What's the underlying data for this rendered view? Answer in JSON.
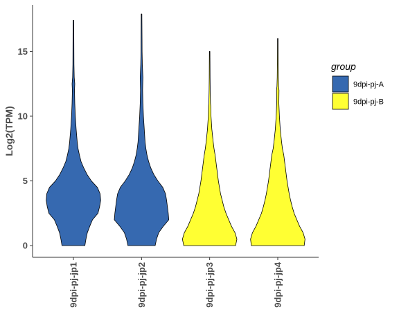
{
  "chart_data": {
    "type": "violin",
    "title": "",
    "xlabel": "",
    "ylabel": "Log2(TPM)",
    "ylim": [
      -0.9,
      18.6
    ],
    "yticks": [
      0,
      5,
      10,
      15
    ],
    "grid": false,
    "legend": {
      "title": "group",
      "position": "right",
      "entries": [
        {
          "name": "9dpi-pj-A",
          "color": "#3669b0"
        },
        {
          "name": "9dpi-pj-B",
          "color": "#ffff33"
        }
      ]
    },
    "categories": [
      "9dpi-pj-jp1",
      "9dpi-pj-jp2",
      "9dpi-pj-jp3",
      "9dpi-pj-jp4"
    ],
    "violins": [
      {
        "category": "9dpi-pj-jp1",
        "group": "9dpi-pj-A",
        "profile": [
          [
            0,
            0.42
          ],
          [
            0.5,
            0.46
          ],
          [
            1,
            0.51
          ],
          [
            1.5,
            0.6
          ],
          [
            2,
            0.7
          ],
          [
            2.5,
            0.9
          ],
          [
            3,
            0.96
          ],
          [
            3.5,
            1.0
          ],
          [
            4,
            0.98
          ],
          [
            4.5,
            0.88
          ],
          [
            5,
            0.66
          ],
          [
            5.5,
            0.5
          ],
          [
            6,
            0.38
          ],
          [
            6.5,
            0.28
          ],
          [
            7,
            0.22
          ],
          [
            7.5,
            0.17
          ],
          [
            8,
            0.14
          ],
          [
            9,
            0.1
          ],
          [
            10,
            0.07
          ],
          [
            11,
            0.05
          ],
          [
            12,
            0.04
          ],
          [
            12.5,
            0.05
          ],
          [
            13,
            0.03
          ],
          [
            14,
            0.02
          ],
          [
            15,
            0.018
          ],
          [
            16,
            0.016
          ],
          [
            17,
            0.015
          ],
          [
            17.4,
            0.012
          ]
        ]
      },
      {
        "category": "9dpi-pj-jp2",
        "group": "9dpi-pj-A",
        "profile": [
          [
            0,
            0.5
          ],
          [
            0.5,
            0.55
          ],
          [
            1,
            0.63
          ],
          [
            1.5,
            0.8
          ],
          [
            2,
            1.0
          ],
          [
            2.5,
            0.98
          ],
          [
            3,
            0.95
          ],
          [
            3.5,
            0.92
          ],
          [
            4,
            0.88
          ],
          [
            4.5,
            0.78
          ],
          [
            5,
            0.6
          ],
          [
            5.5,
            0.45
          ],
          [
            6,
            0.34
          ],
          [
            6.5,
            0.26
          ],
          [
            7,
            0.2
          ],
          [
            7.5,
            0.16
          ],
          [
            8,
            0.13
          ],
          [
            9,
            0.1
          ],
          [
            10,
            0.07
          ],
          [
            11,
            0.05
          ],
          [
            12,
            0.04
          ],
          [
            13,
            0.05
          ],
          [
            14,
            0.03
          ],
          [
            15,
            0.02
          ],
          [
            16,
            0.018
          ],
          [
            17,
            0.015
          ],
          [
            17.9,
            0.012
          ]
        ]
      },
      {
        "category": "9dpi-pj-jp3",
        "group": "9dpi-pj-B",
        "profile": [
          [
            0,
            0.95
          ],
          [
            0.5,
            1.0
          ],
          [
            1,
            0.93
          ],
          [
            1.5,
            0.8
          ],
          [
            2,
            0.7
          ],
          [
            2.5,
            0.6
          ],
          [
            3,
            0.52
          ],
          [
            3.5,
            0.46
          ],
          [
            4,
            0.4
          ],
          [
            5,
            0.32
          ],
          [
            6,
            0.26
          ],
          [
            7,
            0.2
          ],
          [
            7.5,
            0.16
          ],
          [
            8,
            0.13
          ],
          [
            9,
            0.08
          ],
          [
            10,
            0.05
          ],
          [
            10.8,
            0.04
          ],
          [
            11,
            0.03
          ],
          [
            12,
            0.02
          ],
          [
            13,
            0.015
          ],
          [
            14,
            0.013
          ],
          [
            15,
            0.01
          ]
        ]
      },
      {
        "category": "9dpi-pj-jp4",
        "group": "9dpi-pj-B",
        "profile": [
          [
            0,
            0.97
          ],
          [
            0.5,
            1.0
          ],
          [
            1,
            0.93
          ],
          [
            1.5,
            0.8
          ],
          [
            2,
            0.7
          ],
          [
            2.5,
            0.6
          ],
          [
            3,
            0.53
          ],
          [
            3.5,
            0.47
          ],
          [
            4,
            0.42
          ],
          [
            5,
            0.34
          ],
          [
            6,
            0.28
          ],
          [
            7,
            0.22
          ],
          [
            7.5,
            0.17
          ],
          [
            8,
            0.14
          ],
          [
            9,
            0.09
          ],
          [
            10,
            0.06
          ],
          [
            11,
            0.04
          ],
          [
            12,
            0.045
          ],
          [
            12.3,
            0.03
          ],
          [
            13,
            0.02
          ],
          [
            14,
            0.015
          ],
          [
            15,
            0.012
          ],
          [
            16,
            0.01
          ]
        ]
      }
    ]
  }
}
